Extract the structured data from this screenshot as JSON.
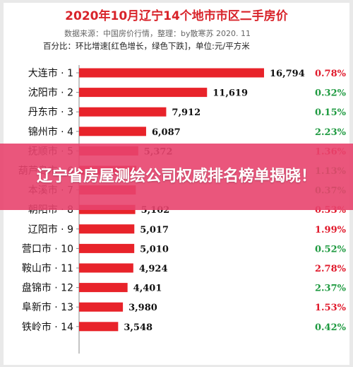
{
  "banner": {
    "headline": "辽宁省房屋测绘公司权威排名榜单揭晓！"
  },
  "chart_data": {
    "type": "bar",
    "orientation": "horizontal",
    "title": "2020年10月辽宁14个地市市区二手房价",
    "source_line": "数据来源：中国房价行情，整理：by散寒苏  2020. 11",
    "unit_line": "百分比：环比增速[红色增长，绿色下跌]，单位:元/平方米",
    "categories": [
      "大连市 · 1",
      "沈阳市 · 2",
      "丹东市 · 3",
      "锦州市 · 4",
      "抚顺市 · 5",
      "葫芦岛市 · 6",
      "本溪市 · 7",
      "朝阳市 · 8",
      "辽阳市 · 9",
      "营口市 · 10",
      "鞍山市 · 11",
      "盘锦市 · 12",
      "阜新市 · 13",
      "铁岭市 · 14"
    ],
    "values": [
      16794,
      11619,
      7912,
      6087,
      5372,
      5200,
      5150,
      5102,
      5017,
      5010,
      4924,
      4401,
      3980,
      3548
    ],
    "value_labels": [
      "16,794",
      "11,619",
      "7,912",
      "6,087",
      "5,372",
      "",
      "",
      "5,102",
      "5,017",
      "5,010",
      "4,924",
      "4,401",
      "3,980",
      "3,548"
    ],
    "change_labels": [
      "0.78%",
      "0.32%",
      "0.15%",
      "2.23%",
      "1.36%",
      "1.13%",
      "0.37%",
      "0.53%",
      "1.99%",
      "0.52%",
      "2.78%",
      "2.37%",
      "1.53%",
      "0.42%"
    ],
    "change_direction": [
      "up",
      "down",
      "down",
      "down",
      "up",
      "down",
      "down",
      "up",
      "up",
      "down",
      "up",
      "down",
      "up",
      "down"
    ],
    "xlim": [
      0,
      16794
    ],
    "grid": false,
    "legend": "none",
    "colors": {
      "bar": "#e8232a",
      "increase": "#e0182a",
      "decrease": "#1e9a40",
      "title": "#d8232a"
    }
  }
}
